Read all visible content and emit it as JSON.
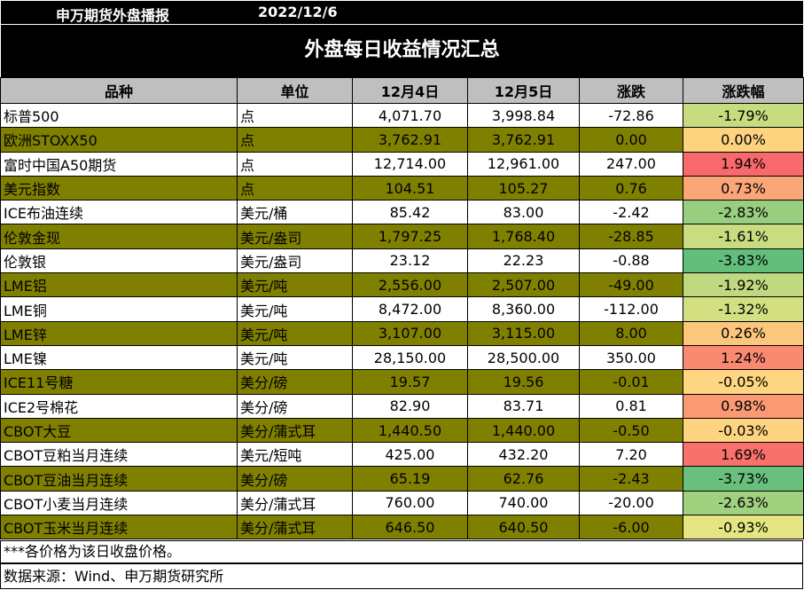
{
  "header": {
    "org": "申万期货外盘播报",
    "date": "2022/12/6"
  },
  "title": "外盘每日收益情况汇总",
  "columns": [
    "品种",
    "单位",
    "12月4日",
    "12月5日",
    "涨跌",
    "涨跌幅"
  ],
  "rows": [
    {
      "name": "标普500",
      "unit": "点",
      "d1": "4,071.70",
      "d2": "3,998.84",
      "chg": "-72.86",
      "pct": "-1.79%",
      "pct_color": "#c6dc7e"
    },
    {
      "name": "欧洲STOXX50",
      "unit": "点",
      "d1": "3,762.91",
      "d2": "3,762.91",
      "chg": "0.00",
      "pct": "0.00%",
      "pct_color": "#fdd37f"
    },
    {
      "name": "富时中国A50期货",
      "unit": "点",
      "d1": "12,714.00",
      "d2": "12,961.00",
      "chg": "247.00",
      "pct": "1.94%",
      "pct_color": "#f8696b"
    },
    {
      "name": "美元指数",
      "unit": "点",
      "d1": "104.51",
      "d2": "105.27",
      "chg": "0.76",
      "pct": "0.73%",
      "pct_color": "#fba677"
    },
    {
      "name": "ICE布油连续",
      "unit": "美元/桶",
      "d1": "85.42",
      "d2": "83.00",
      "chg": "-2.42",
      "pct": "-2.83%",
      "pct_color": "#98ce7f"
    },
    {
      "name": "伦敦金现",
      "unit": "美元/盎司",
      "d1": "1,797.25",
      "d2": "1,768.40",
      "chg": "-28.85",
      "pct": "-1.61%",
      "pct_color": "#c9dd80"
    },
    {
      "name": "伦敦银",
      "unit": "美元/盎司",
      "d1": "23.12",
      "d2": "22.23",
      "chg": "-0.88",
      "pct": "-3.83%",
      "pct_color": "#63be7b"
    },
    {
      "name": "LME铝",
      "unit": "美元/吨",
      "d1": "2,556.00",
      "d2": "2,507.00",
      "chg": "-49.00",
      "pct": "-1.92%",
      "pct_color": "#c0d981"
    },
    {
      "name": "LME铜",
      "unit": "美元/吨",
      "d1": "8,472.00",
      "d2": "8,360.00",
      "chg": "-112.00",
      "pct": "-1.32%",
      "pct_color": "#d3e082"
    },
    {
      "name": "LME锌",
      "unit": "美元/吨",
      "d1": "3,107.00",
      "d2": "3,115.00",
      "chg": "8.00",
      "pct": "0.26%",
      "pct_color": "#fcc67c"
    },
    {
      "name": "LME镍",
      "unit": "美元/吨",
      "d1": "28,150.00",
      "d2": "28,500.00",
      "chg": "350.00",
      "pct": "1.24%",
      "pct_color": "#f98970"
    },
    {
      "name": "ICE11号糖",
      "unit": "美分/磅",
      "d1": "19.57",
      "d2": "19.56",
      "chg": "-0.01",
      "pct": "-0.05%",
      "pct_color": "#fed580"
    },
    {
      "name": "ICE2号棉花",
      "unit": "美分/磅",
      "d1": "82.90",
      "d2": "83.71",
      "chg": "0.81",
      "pct": "0.98%",
      "pct_color": "#fa9974"
    },
    {
      "name": "CBOT大豆",
      "unit": "美分/蒲式耳",
      "d1": "1,440.50",
      "d2": "1,440.00",
      "chg": "-0.50",
      "pct": "-0.03%",
      "pct_color": "#fed480"
    },
    {
      "name": "CBOT豆粕当月连续",
      "unit": "美元/短吨",
      "d1": "425.00",
      "d2": "432.20",
      "chg": "7.20",
      "pct": "1.69%",
      "pct_color": "#f8716c"
    },
    {
      "name": "CBOT豆油当月连续",
      "unit": "美分/磅",
      "d1": "65.19",
      "d2": "62.76",
      "chg": "-2.43",
      "pct": "-3.73%",
      "pct_color": "#69c07c"
    },
    {
      "name": "CBOT小麦当月连续",
      "unit": "美分/蒲式耳",
      "d1": "760.00",
      "d2": "740.00",
      "chg": "-20.00",
      "pct": "-2.63%",
      "pct_color": "#a0d17f"
    },
    {
      "name": "CBOT玉米当月连续",
      "unit": "美分/蒲式耳",
      "d1": "646.50",
      "d2": "640.50",
      "chg": "-6.00",
      "pct": "-0.93%",
      "pct_color": "#e5e582"
    }
  ],
  "note": "***各价格为该日收盘价格。",
  "source": "数据来源：Wind、申万期货研究所"
}
